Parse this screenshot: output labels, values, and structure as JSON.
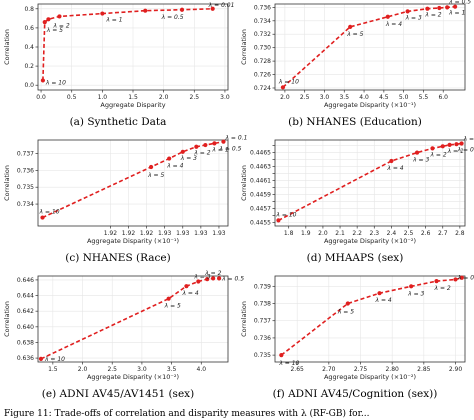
{
  "colors": {
    "line": "#e01f1f",
    "marker": "#e01f1f",
    "axis": "#333333",
    "grid": "#e6e6e6"
  },
  "footer": "Figure 11: Trade-offs of correlation and disparity measures with λ (RF-GB) for... ",
  "chart_data": [
    {
      "type": "line",
      "caption": "(a) Synthetic Data",
      "xlabel": "Aggregate Disparity",
      "ylabel": "Correlation",
      "xlim": [
        -0.05,
        3.05
      ],
      "ylim": [
        -0.05,
        0.85
      ],
      "xticks": [
        0.0,
        0.5,
        1.0,
        1.5,
        2.0,
        2.5,
        3.0
      ],
      "xtick_labels": [
        "0.0",
        "0.5",
        "1.0",
        "1.5",
        "2.0",
        "2.5",
        "3.0"
      ],
      "yticks": [
        0.0,
        0.2,
        0.4,
        0.6,
        0.8
      ],
      "ytick_labels": [
        "0.0",
        "0.2",
        "0.4",
        "0.6",
        "0.8"
      ],
      "x": [
        0.03,
        0.06,
        0.12,
        0.3,
        1.0,
        1.7,
        2.3,
        2.8
      ],
      "y": [
        0.05,
        0.66,
        0.69,
        0.72,
        0.75,
        0.78,
        0.79,
        0.8
      ],
      "annotations": [
        {
          "text": "λ = 10",
          "x": 0.03,
          "y": 0.05,
          "dx": 3,
          "dy": 4
        },
        {
          "text": "λ = 5",
          "x": 0.06,
          "y": 0.66,
          "dx": 2,
          "dy": 10
        },
        {
          "text": "λ = 2",
          "x": 0.3,
          "y": 0.72,
          "dx": -6,
          "dy": 11
        },
        {
          "text": "λ = 1",
          "x": 1.0,
          "y": 0.75,
          "dx": 4,
          "dy": 8
        },
        {
          "text": "λ = 0.5",
          "x": 2.0,
          "y": 0.785,
          "dx": -2,
          "dy": 9
        },
        {
          "text": "λ = 0.01",
          "x": 2.8,
          "y": 0.8,
          "dx": -4,
          "dy": -2
        }
      ]
    },
    {
      "type": "line",
      "caption": "(b) NHANES (Education)",
      "xlabel": "Aggregate Disparity (×10⁻¹)",
      "ylabel": "Correlation",
      "xlim": [
        1.75,
        6.55
      ],
      "ylim": [
        0.7237,
        0.7365
      ],
      "xticks": [
        2.0,
        2.5,
        3.0,
        3.5,
        4.0,
        4.5,
        5.0,
        5.5,
        6.0
      ],
      "xtick_labels": [
        "2.0",
        "2.5",
        "3.0",
        "3.5",
        "4.0",
        "4.5",
        "5.0",
        "5.5",
        "6.0"
      ],
      "yticks": [
        0.724,
        0.726,
        0.728,
        0.73,
        0.732,
        0.734,
        0.736
      ],
      "ytick_labels": [
        "0.724",
        "0.726",
        "0.728",
        "0.730",
        "0.732",
        "0.734",
        "0.736"
      ],
      "x": [
        1.95,
        3.65,
        4.6,
        5.1,
        5.6,
        5.9,
        6.1,
        6.3
      ],
      "y": [
        0.7241,
        0.7331,
        0.7346,
        0.7354,
        0.7358,
        0.7359,
        0.736,
        0.7361
      ],
      "annotations": [
        {
          "text": "λ = 10",
          "x": 1.95,
          "y": 0.7241,
          "dx": -4,
          "dy": -4
        },
        {
          "text": "λ = 5",
          "x": 3.65,
          "y": 0.7331,
          "dx": -3,
          "dy": 9
        },
        {
          "text": "λ = 4",
          "x": 4.6,
          "y": 0.7346,
          "dx": -2,
          "dy": 9
        },
        {
          "text": "λ = 3",
          "x": 5.1,
          "y": 0.7354,
          "dx": -2,
          "dy": 8
        },
        {
          "text": "λ = 2",
          "x": 5.6,
          "y": 0.7358,
          "dx": -2,
          "dy": 8
        },
        {
          "text": "λ = 1",
          "x": 6.3,
          "y": 0.7361,
          "dx": -6,
          "dy": 8
        },
        {
          "text": "λ = 0.5",
          "x": 6.1,
          "y": 0.736,
          "dx": 2,
          "dy": -4
        }
      ]
    },
    {
      "type": "line",
      "caption": "(c) NHANES (Race)",
      "xlabel": "Aggregate Disparity (×10⁻¹)",
      "ylabel": "Correlation",
      "xlim": [
        1.912,
        1.933
      ],
      "ylim": [
        0.7327,
        0.7378
      ],
      "xticks": [
        1.92,
        1.922,
        1.924,
        1.926,
        1.928,
        1.93,
        1.932
      ],
      "xtick_labels": [
        "1.92",
        "1.92",
        "1.92",
        "1.93",
        "1.93",
        "1.93",
        "1.93"
      ],
      "yticks": [
        0.734,
        0.735,
        0.736,
        0.737
      ],
      "ytick_labels": [
        "0.734",
        "0.735",
        "0.736",
        "0.737"
      ],
      "x": [
        1.9125,
        1.9245,
        1.9265,
        1.928,
        1.9295,
        1.9305,
        1.9315,
        1.9325
      ],
      "y": [
        0.7332,
        0.7362,
        0.7367,
        0.7371,
        0.7374,
        0.7375,
        0.7376,
        0.7377
      ],
      "annotations": [
        {
          "text": "λ = 10",
          "x": 1.9125,
          "y": 0.7332,
          "dx": -3,
          "dy": -4
        },
        {
          "text": "λ = 5",
          "x": 1.9245,
          "y": 0.7362,
          "dx": -3,
          "dy": 10
        },
        {
          "text": "λ = 4",
          "x": 1.9265,
          "y": 0.7367,
          "dx": -2,
          "dy": 9
        },
        {
          "text": "λ = 3",
          "x": 1.928,
          "y": 0.7371,
          "dx": -2,
          "dy": 8
        },
        {
          "text": "λ = 2",
          "x": 1.9295,
          "y": 0.7374,
          "dx": -2,
          "dy": 8
        },
        {
          "text": "λ = 1",
          "x": 1.9315,
          "y": 0.7376,
          "dx": -2,
          "dy": 8
        },
        {
          "text": "λ = 0.5",
          "x": 1.9325,
          "y": 0.7377,
          "dx": -4,
          "dy": 9
        },
        {
          "text": "λ = 0.1",
          "x": 1.9325,
          "y": 0.7377,
          "dx": 2,
          "dy": -2
        }
      ]
    },
    {
      "type": "line",
      "caption": "(d) MHAAPS (sex)",
      "xlabel": "Aggregate Disparity (×10⁻²)",
      "ylabel": "Correlation",
      "xlim": [
        1.72,
        2.83
      ],
      "ylim": [
        0.44545,
        0.44668
      ],
      "xticks": [
        1.8,
        1.9,
        2.0,
        2.1,
        2.2,
        2.3,
        2.4,
        2.5,
        2.6,
        2.7,
        2.8
      ],
      "xtick_labels": [
        "1.8",
        "1.9",
        "2.0",
        "2.1",
        "2.2",
        "2.3",
        "2.4",
        "2.5",
        "2.6",
        "2.7",
        "2.8"
      ],
      "yticks": [
        0.4455,
        0.4456,
        0.4457,
        0.4458,
        0.4459,
        0.446,
        0.4461,
        0.4462,
        0.4463,
        0.4464,
        0.4465,
        0.4466
      ],
      "ytick_labels": [
        "0.4455",
        "",
        "0.4457",
        "",
        "0.4459",
        "",
        "0.4461",
        "",
        "0.4463",
        "",
        "0.4465",
        ""
      ],
      "x": [
        1.74,
        2.4,
        2.55,
        2.64,
        2.7,
        2.74,
        2.78,
        2.81
      ],
      "y": [
        0.44553,
        0.44638,
        0.4465,
        0.44656,
        0.44659,
        0.44661,
        0.44662,
        0.44663
      ],
      "annotations": [
        {
          "text": "λ = 10",
          "x": 1.74,
          "y": 0.44553,
          "dx": -2,
          "dy": -4
        },
        {
          "text": "λ = 4",
          "x": 2.4,
          "y": 0.44638,
          "dx": -4,
          "dy": 9
        },
        {
          "text": "λ = 3",
          "x": 2.55,
          "y": 0.4465,
          "dx": -4,
          "dy": 9
        },
        {
          "text": "λ = 2",
          "x": 2.64,
          "y": 0.44656,
          "dx": -2,
          "dy": 8
        },
        {
          "text": "λ = 1",
          "x": 2.74,
          "y": 0.44661,
          "dx": -2,
          "dy": 8
        },
        {
          "text": "λ = 0.5",
          "x": 2.81,
          "y": 0.44663,
          "dx": -4,
          "dy": 8
        },
        {
          "text": "λ = 0.1",
          "x": 2.81,
          "y": 0.44663,
          "dx": 2,
          "dy": -3
        }
      ]
    },
    {
      "type": "line",
      "caption": "(e) ADNI AV45/AV1451 (sex)",
      "xlabel": "Aggregate Disparity (×10⁻²)",
      "ylabel": "Correlation",
      "xlim": [
        1.25,
        4.45
      ],
      "ylim": [
        0.6355,
        0.6465
      ],
      "xticks": [
        1.5,
        2.0,
        2.5,
        3.0,
        3.5,
        4.0
      ],
      "xtick_labels": [
        "1.5",
        "2.0",
        "2.5",
        "3.0",
        "3.5",
        "4.0"
      ],
      "yticks": [
        0.636,
        0.638,
        0.64,
        0.642,
        0.644,
        0.646
      ],
      "ytick_labels": [
        "0.636",
        "0.638",
        "0.640",
        "0.642",
        "0.644",
        "0.646"
      ],
      "x": [
        1.3,
        3.45,
        3.75,
        3.95,
        4.1,
        4.2,
        4.3
      ],
      "y": [
        0.6359,
        0.6436,
        0.6452,
        0.6458,
        0.6461,
        0.6462,
        0.6462
      ],
      "annotations": [
        {
          "text": "λ = 10",
          "x": 1.3,
          "y": 0.6359,
          "dx": 4,
          "dy": 2
        },
        {
          "text": "λ = 5",
          "x": 3.45,
          "y": 0.6436,
          "dx": -4,
          "dy": 9
        },
        {
          "text": "λ = 4",
          "x": 3.75,
          "y": 0.6452,
          "dx": -4,
          "dy": 9
        },
        {
          "text": "λ = 3",
          "x": 3.95,
          "y": 0.6458,
          "dx": -4,
          "dy": -3
        },
        {
          "text": "λ = 2",
          "x": 4.1,
          "y": 0.6461,
          "dx": -2,
          "dy": -4
        },
        {
          "text": "λ = 0.5",
          "x": 4.3,
          "y": 0.6462,
          "dx": 3,
          "dy": 2
        }
      ]
    },
    {
      "type": "line",
      "caption": "(f) ADNI AV45/Cognition (sex))",
      "xlabel": "Aggregate Disparity (×10⁻²)",
      "ylabel": "Correlation",
      "xlim": [
        2.615,
        2.915
      ],
      "ylim": [
        0.7346,
        0.7396
      ],
      "xticks": [
        2.65,
        2.7,
        2.75,
        2.8,
        2.85,
        2.9
      ],
      "xtick_labels": [
        "2.65",
        "2.70",
        "2.75",
        "2.80",
        "2.85",
        "2.90"
      ],
      "yticks": [
        0.735,
        0.736,
        0.737,
        0.738,
        0.739
      ],
      "ytick_labels": [
        "0.735",
        "0.736",
        "0.737",
        "0.738",
        "0.739"
      ],
      "x": [
        2.625,
        2.73,
        2.78,
        2.83,
        2.87,
        2.9,
        2.91
      ],
      "y": [
        0.735,
        0.738,
        0.7386,
        0.739,
        0.7393,
        0.7394,
        0.7395
      ],
      "annotations": [
        {
          "text": "λ = 10",
          "x": 2.625,
          "y": 0.735,
          "dx": -2,
          "dy": 10
        },
        {
          "text": "λ = 5",
          "x": 2.73,
          "y": 0.738,
          "dx": -10,
          "dy": 10
        },
        {
          "text": "λ = 4",
          "x": 2.78,
          "y": 0.7386,
          "dx": -4,
          "dy": 9
        },
        {
          "text": "λ = 3",
          "x": 2.83,
          "y": 0.739,
          "dx": -3,
          "dy": 9
        },
        {
          "text": "λ = 2",
          "x": 2.87,
          "y": 0.7393,
          "dx": -2,
          "dy": 9
        },
        {
          "text": "λ = 0.5",
          "x": 2.91,
          "y": 0.7395,
          "dx": -4,
          "dy": 2
        }
      ]
    }
  ]
}
